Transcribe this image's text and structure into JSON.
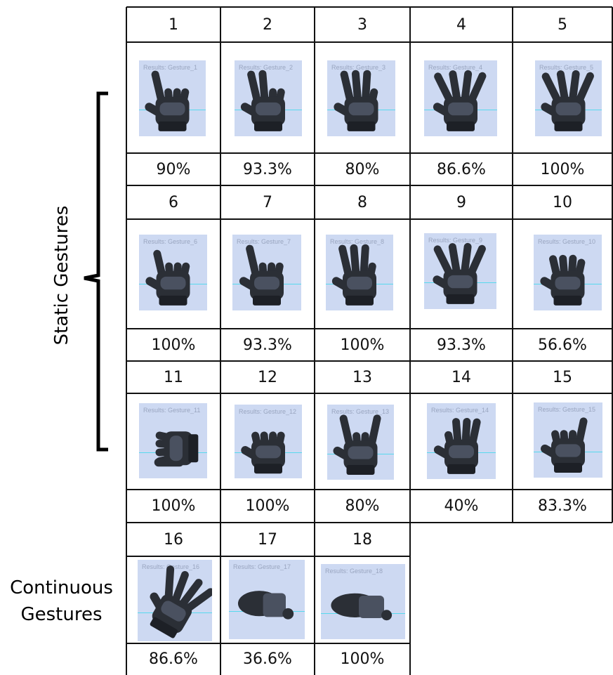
{
  "static_label": "Static Gestures",
  "continuous_label_line1": "Continuous",
  "continuous_label_line2": "Gestures",
  "gestures": [
    {
      "number": "1",
      "caption": "Results: Gesture_1",
      "accuracy": "90%",
      "pose": "point"
    },
    {
      "number": "2",
      "caption": "Results: Gesture_2",
      "accuracy": "93.3%",
      "pose": "peace"
    },
    {
      "number": "3",
      "caption": "Results: Gesture_3",
      "accuracy": "80%",
      "pose": "three"
    },
    {
      "number": "4",
      "caption": "Results: Gesture_4",
      "accuracy": "86.6%",
      "pose": "four"
    },
    {
      "number": "5",
      "caption": "Results: Gesture_5",
      "accuracy": "100%",
      "pose": "open"
    },
    {
      "number": "6",
      "caption": "Results: Gesture_6",
      "accuracy": "100%",
      "pose": "gun"
    },
    {
      "number": "7",
      "caption": "Results: Gesture_7",
      "accuracy": "93.3%",
      "pose": "index"
    },
    {
      "number": "8",
      "caption": "Results: Gesture_8",
      "accuracy": "100%",
      "pose": "three"
    },
    {
      "number": "9",
      "caption": "Results: Gesture_9",
      "accuracy": "93.3%",
      "pose": "open"
    },
    {
      "number": "10",
      "caption": "Results: Gesture_10",
      "accuracy": "56.6%",
      "pose": "curl"
    },
    {
      "number": "11",
      "caption": "Results: Gesture_11",
      "accuracy": "100%",
      "pose": "thumb"
    },
    {
      "number": "12",
      "caption": "Results: Gesture_12",
      "accuracy": "100%",
      "pose": "fist"
    },
    {
      "number": "13",
      "caption": "Results: Gesture_13",
      "accuracy": "80%",
      "pose": "horns"
    },
    {
      "number": "14",
      "caption": "Results: Gesture_14",
      "accuracy": "40%",
      "pose": "ok"
    },
    {
      "number": "15",
      "caption": "Results: Gesture_15",
      "accuracy": "83.3%",
      "pose": "pinky"
    },
    {
      "number": "16",
      "caption": "Results: Gesture_16",
      "accuracy": "86.6%",
      "pose": "flat"
    },
    {
      "number": "17",
      "caption": "Results: Gesture_17",
      "accuracy": "36.6%",
      "pose": "side"
    },
    {
      "number": "18",
      "caption": "Results: Gesture_18",
      "accuracy": "100%",
      "pose": "side"
    }
  ],
  "colors": {
    "thumb_bg": "#cdd9f2",
    "glove": "#2b2f36",
    "glove_light": "#4a5160",
    "guide_line": "#57d9ee"
  }
}
